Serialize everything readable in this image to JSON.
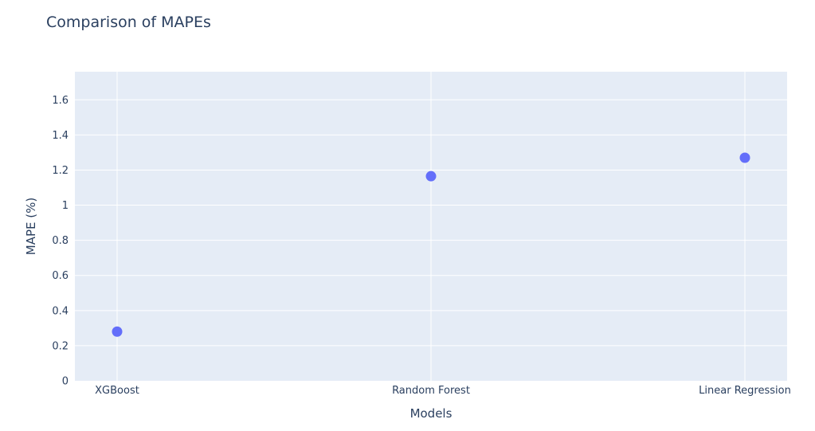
{
  "chart_data": {
    "type": "scatter",
    "title": "Comparison of MAPEs",
    "xlabel": "Models",
    "ylabel": "MAPE (%)",
    "categories": [
      "XGBoost",
      "Random Forest",
      "Linear Regression"
    ],
    "series": [
      {
        "values": [
          0.28,
          1.165,
          1.27
        ]
      }
    ],
    "ylim": [
      0,
      1.76
    ],
    "yticks": [
      0,
      0.2,
      0.4,
      0.6,
      0.8,
      1,
      1.2,
      1.4,
      1.6
    ],
    "ytick_labels": [
      "0",
      "0.2",
      "0.4",
      "0.6",
      "0.8",
      "1",
      "1.2",
      "1.4",
      "1.6"
    ],
    "grid": true,
    "colors": {
      "plot_background": "#e5ecf6",
      "grid": "#ffffff",
      "marker": "#636efa",
      "text": "#2a3f5f"
    }
  }
}
